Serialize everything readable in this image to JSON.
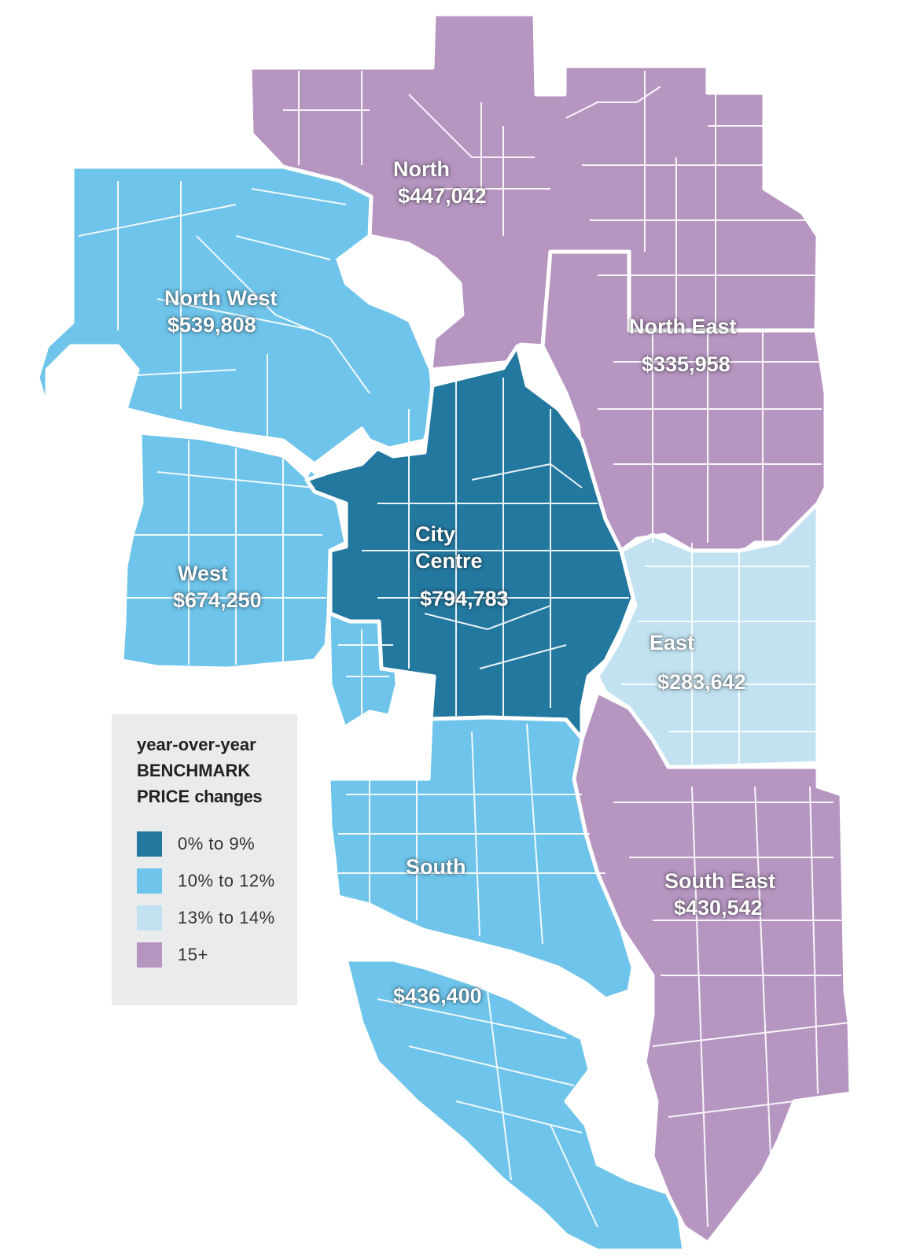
{
  "colors": {
    "c0_9": "#23789f",
    "c10_12": "#6ec4ea",
    "c13_14": "#c2e2f2",
    "c15": "#b696c1"
  },
  "regions": [
    {
      "id": "north",
      "name": "North",
      "price": "$447,042",
      "category": "15+"
    },
    {
      "id": "north-east",
      "name": "North East",
      "price": "$335,958",
      "category": "15+"
    },
    {
      "id": "north-west",
      "name": "North West",
      "price": "$539,808",
      "category": "10% to 12%"
    },
    {
      "id": "city-centre",
      "name": "City\nCentre",
      "price": "$794,783",
      "category": "0% to 9%"
    },
    {
      "id": "west",
      "name": "West",
      "price": "$674,250",
      "category": "10% to 12%"
    },
    {
      "id": "east",
      "name": "East",
      "price": "$283,642",
      "category": "13% to 14%"
    },
    {
      "id": "south",
      "name": "South",
      "price": "$436,400",
      "category": "10% to 12%"
    },
    {
      "id": "south-east",
      "name": "South East",
      "price": "$430,542",
      "category": "15+"
    }
  ],
  "legend": {
    "title_line1": "year-over-year",
    "title_line2": "BENCHMARK",
    "title_line3a": "PRICE",
    "title_line3b": "changes",
    "items": [
      {
        "label": "0% to 9%",
        "color": "#23789f"
      },
      {
        "label": "10% to 12%",
        "color": "#6ec4ea"
      },
      {
        "label": "13% to 14%",
        "color": "#c2e2f2"
      },
      {
        "label": "15+",
        "color": "#b696c1"
      }
    ]
  }
}
